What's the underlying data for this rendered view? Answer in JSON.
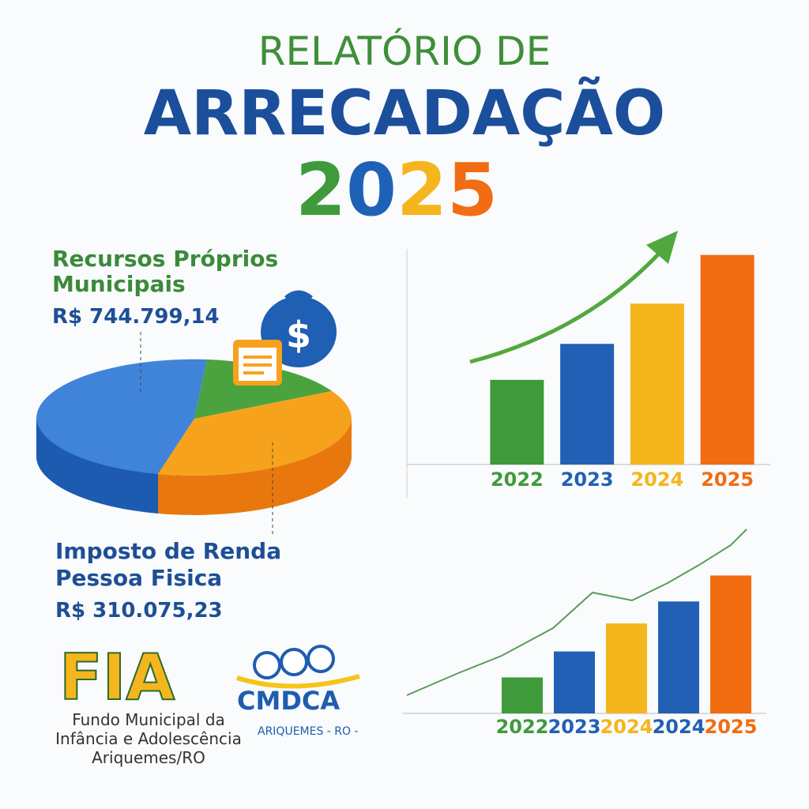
{
  "header": {
    "line1": "RELATÓRIO DE",
    "line2": "ARRECADAÇÃO",
    "year": "2025"
  },
  "pie": {
    "items": [
      {
        "label_lines": [
          "Recursos Próprios",
          "Municipais"
        ],
        "amount": "R$ 744.799,14"
      },
      {
        "label_lines": [
          "Imposto de Renda",
          "Pessoa Fisica"
        ],
        "amount": "R$ 310.075,23"
      }
    ]
  },
  "logo": {
    "fia": "FIA",
    "cmdca": "CMDCA",
    "cmdca_place": "ARIQUEMES - RO -",
    "caption_lines": [
      "Fundo Municipal da",
      "Infância e Adolescência",
      "Ariquemes/RO"
    ]
  },
  "chart_data": [
    {
      "type": "bar",
      "categories": [
        "2022",
        "2023",
        "2024",
        "2025"
      ],
      "values": [
        40,
        57,
        76,
        99
      ],
      "colors": [
        "#3f9a3c",
        "#2160b5",
        "#f5b51c",
        "#f26c12"
      ],
      "ylim": [
        0,
        100
      ]
    },
    {
      "type": "bar",
      "categories": [
        "2022",
        "2023",
        "2024",
        "2024",
        "2025"
      ],
      "values": [
        18,
        31,
        45,
        56,
        69
      ],
      "colors": [
        "#3f9a3c",
        "#2160b5",
        "#f5b51c",
        "#2160b5",
        "#f26c12"
      ],
      "ylim": [
        0,
        100
      ]
    }
  ]
}
